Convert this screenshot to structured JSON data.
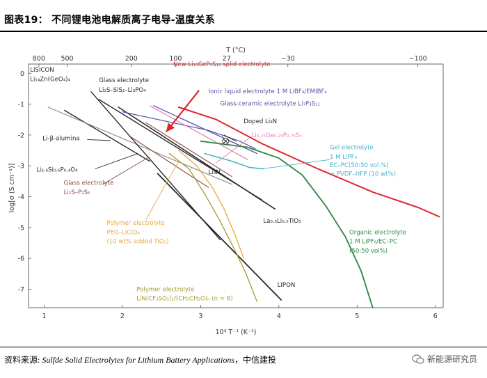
{
  "header": {
    "title": "图表19：  不同锂电池电解质离子电导-温度关系"
  },
  "footer": {
    "source_prefix": "资料来源: ",
    "source_italic": "Sulfde Solid Electrolytes for Lithium Battery Applications",
    "source_suffix": "，中信建投",
    "brand": "新能源研究员"
  },
  "colors": {
    "red": "#e0262b",
    "green": "#2e8a48",
    "teal": "#44b3c8",
    "purple": "#5a52a8",
    "pink": "#e87eb0",
    "orange": "#e6a93a",
    "olive": "#a79a2e",
    "brown": "#8a4a3a",
    "darkgray": "#2a2a2a",
    "gray": "#888888"
  },
  "chart_data": {
    "type": "line",
    "title": "",
    "xlabel": "10³ T⁻¹ (K⁻¹)",
    "ylabel": "log[σ (S cm⁻¹)]",
    "top_xlabel": "T (°C)",
    "xlim": [
      0.8,
      6.1
    ],
    "ylim": [
      -7.6,
      0.3
    ],
    "xticks": [
      1,
      2,
      3,
      4,
      5,
      6
    ],
    "yticks": [
      0,
      -1,
      -2,
      -3,
      -4,
      -5,
      -6,
      -7
    ],
    "top_ticks": [
      {
        "label": "800",
        "x": 0.932
      },
      {
        "label": "500",
        "x": 1.294
      },
      {
        "label": "200",
        "x": 2.114
      },
      {
        "label": "100",
        "x": 2.68
      },
      {
        "label": "27",
        "x": 3.333
      },
      {
        "label": "−30",
        "x": 4.115
      },
      {
        "label": "−100",
        "x": 5.777
      }
    ],
    "series": [
      {
        "id": "s1",
        "name": "LISICON Li14Zn(GeO4)4",
        "color": "darkgray",
        "width": 1.4,
        "points": [
          [
            1.26,
            -1.2
          ],
          [
            2.35,
            -2.85
          ]
        ]
      },
      {
        "id": "s2",
        "name": "Li3.6Si0.6P0.4O4",
        "color": "gray",
        "width": 1.1,
        "points": [
          [
            1.05,
            -1.1
          ],
          [
            3.4,
            -3.6
          ]
        ]
      },
      {
        "id": "s3",
        "name": "Li-β-alumina",
        "color": "darkgray",
        "width": 1.4,
        "points": [
          [
            1.6,
            -0.6
          ],
          [
            3.25,
            -5.4
          ]
        ]
      },
      {
        "id": "s4",
        "name": "Glass electrolyte Li2S-SiS2-Li3PO4",
        "color": "darkgray",
        "width": 1.4,
        "points": [
          [
            1.7,
            -0.85
          ],
          [
            3.78,
            -4.1
          ]
        ]
      },
      {
        "id": "s5",
        "name": "La0.5Li0.5TiO3",
        "color": "darkgray",
        "width": 1.6,
        "points": [
          [
            1.95,
            -1.1
          ],
          [
            3.95,
            -4.4
          ]
        ]
      },
      {
        "id": "s6",
        "name": "Glass electrolyte Li2S-P2S5",
        "color": "brown",
        "width": 1.1,
        "points": [
          [
            2.1,
            -2.05
          ],
          [
            3.1,
            -3.7
          ]
        ]
      },
      {
        "id": "s7",
        "name": "Li3N",
        "color": "brown",
        "width": 1.1,
        "points": [
          [
            2.3,
            -1.6
          ],
          [
            3.4,
            -3.35
          ]
        ]
      },
      {
        "id": "s8",
        "name": "LIPON",
        "color": "darkgray",
        "width": 1.8,
        "points": [
          [
            2.45,
            -3.25
          ],
          [
            4.03,
            -7.35
          ]
        ]
      },
      {
        "id": "s9",
        "name": "Polymer electrolyte PEO-LiClO4 (10 wt% added TiO2)",
        "color": "orange",
        "width": 1.3,
        "points": [
          [
            2.72,
            -2.5
          ],
          [
            2.95,
            -3.0
          ],
          [
            3.15,
            -3.7
          ],
          [
            3.3,
            -4.4
          ],
          [
            3.45,
            -5.3
          ],
          [
            3.55,
            -6.0
          ]
        ]
      },
      {
        "id": "s10",
        "name": "Polymer electrolyte LiN(CF3SO2)2/(CH2CH2O)n (n=8)",
        "color": "olive",
        "width": 1.3,
        "points": [
          [
            2.6,
            -2.6
          ],
          [
            2.85,
            -3.1
          ],
          [
            3.05,
            -3.9
          ],
          [
            3.25,
            -4.8
          ],
          [
            3.45,
            -5.8
          ],
          [
            3.58,
            -6.5
          ],
          [
            3.72,
            -7.4
          ]
        ]
      },
      {
        "id": "s11",
        "name": "Glass-ceramic electrolyte Li7P3S11",
        "color": "purple",
        "width": 1.3,
        "points": [
          [
            2.4,
            -1.05
          ],
          [
            3.72,
            -2.6
          ]
        ]
      },
      {
        "id": "s12",
        "name": "Ionic liquid electrolyte 1 M LiBF4/EMIBF4",
        "color": "purple",
        "width": 1.2,
        "points": [
          [
            2.0,
            -1.25
          ],
          [
            3.1,
            -1.85
          ],
          [
            3.5,
            -2.2
          ],
          [
            3.7,
            -2.45
          ]
        ]
      },
      {
        "id": "s13",
        "name": "Li3.25Ge0.25P0.75S4",
        "color": "pink",
        "width": 1.2,
        "points": [
          [
            2.35,
            -1.05
          ],
          [
            3.6,
            -2.8
          ]
        ]
      },
      {
        "id": "s14",
        "name": "Doped Li3N",
        "color": "darkgray",
        "width": 1.0,
        "points": [
          [
            3.3,
            -2.0
          ],
          [
            3.45,
            -2.2
          ]
        ]
      },
      {
        "id": "s15",
        "name": "Gel electrolyte 1 M LiPF6 EC-PC(50:50 vol.%) + PVDF-HFP (10 wt%)",
        "color": "teal",
        "width": 1.6,
        "points": [
          [
            3.05,
            -2.6
          ],
          [
            3.4,
            -2.85
          ],
          [
            3.62,
            -3.05
          ],
          [
            3.8,
            -3.1
          ]
        ]
      },
      {
        "id": "s16",
        "name": "New Li10GeP2S12 solid electrolyte",
        "color": "red",
        "width": 2.0,
        "points": [
          [
            2.72,
            -1.1
          ],
          [
            3.2,
            -1.5
          ],
          [
            3.8,
            -2.3
          ],
          [
            4.5,
            -3.1
          ],
          [
            5.2,
            -3.85
          ],
          [
            5.78,
            -4.35
          ],
          [
            6.05,
            -4.65
          ]
        ]
      },
      {
        "id": "s17",
        "name": "Organic electrolyte 1 M LiPF6/EC-PC (50:50 vol%)",
        "color": "green",
        "width": 1.9,
        "points": [
          [
            3.0,
            -2.2
          ],
          [
            3.6,
            -2.4
          ],
          [
            4.0,
            -2.75
          ],
          [
            4.3,
            -3.3
          ],
          [
            4.6,
            -4.3
          ],
          [
            4.85,
            -5.3
          ],
          [
            5.05,
            -6.4
          ],
          [
            5.2,
            -7.6
          ]
        ]
      }
    ],
    "arrow": {
      "color": "red",
      "from": [
        2.98,
        -0.55
      ],
      "to": [
        2.56,
        -1.9
      ]
    },
    "marker": {
      "x": 3.32,
      "y": -2.2,
      "label": "Doped Li3N"
    },
    "labels": [
      {
        "id": "L1a",
        "text": "LISICON",
        "color": "darkgray",
        "x": 0.82,
        "y": 0.12
      },
      {
        "id": "L1b",
        "text": "Li₁₄Zn(GeO₄)₄",
        "color": "darkgray",
        "x": 0.82,
        "y": -0.18
      },
      {
        "id": "L2",
        "text": "Li-β-alumina",
        "color": "darkgray",
        "x": 0.98,
        "y": -2.1
      },
      {
        "id": "L3",
        "text": "Li₃.₆Si₀.₆P₀.₄O₄",
        "color": "darkgray",
        "x": 0.9,
        "y": -3.12
      },
      {
        "id": "L4a",
        "text": "Glass electrolyte",
        "color": "darkgray",
        "x": 1.7,
        "y": -0.22
      },
      {
        "id": "L4b",
        "text": "Li₂S–SiS₂–Li₃PO₄",
        "color": "darkgray",
        "x": 1.7,
        "y": -0.53
      },
      {
        "id": "L5",
        "text": "New Li₁₀GeP₂S₁₂ solid electrolyte",
        "color": "red",
        "x": 2.65,
        "y": 0.3
      },
      {
        "id": "L6",
        "text": "Ionic liquid electrolyte 1 M LiBF₄/EMIBF₄",
        "color": "purple",
        "x": 3.1,
        "y": -0.58
      },
      {
        "id": "L7",
        "text": "Glass-ceramic electrolyte Li₇P₃S₁₁",
        "color": "purple",
        "x": 3.25,
        "y": -0.97
      },
      {
        "id": "L8",
        "text": "Doped Li₃N",
        "color": "darkgray",
        "x": 3.55,
        "y": -1.55
      },
      {
        "id": "L9",
        "text": "Li₃.₂₅Ge₀.₂₅P₀.₇₅S₄",
        "color": "pink",
        "x": 3.65,
        "y": -2.0
      },
      {
        "id": "L10a",
        "text": "Gel electrolyte",
        "color": "teal",
        "x": 4.65,
        "y": -2.4
      },
      {
        "id": "L10b",
        "text": "1 M LiPF₆",
        "color": "teal",
        "x": 4.65,
        "y": -2.7
      },
      {
        "id": "L10c",
        "text": "EC–PC(50:50 vol.%)",
        "color": "teal",
        "x": 4.65,
        "y": -2.97
      },
      {
        "id": "L10d",
        "text": "+ PVDF–HFP (10 wt%)",
        "color": "teal",
        "x": 4.65,
        "y": -3.25
      },
      {
        "id": "L11a",
        "text": "Glass electrolyte",
        "color": "brown",
        "x": 1.25,
        "y": -3.55
      },
      {
        "id": "L11b",
        "text": "Li₂S–P₂S₅",
        "color": "brown",
        "x": 1.25,
        "y": -3.85
      },
      {
        "id": "L12",
        "text": "Li₃N",
        "color": "darkgray",
        "x": 3.1,
        "y": -3.2
      },
      {
        "id": "L13",
        "text": "La₀.₅Li₀.₅TiO₃",
        "color": "darkgray",
        "x": 3.8,
        "y": -4.78
      },
      {
        "id": "L14a",
        "text": "Polymer electrolyte",
        "color": "orange",
        "x": 1.8,
        "y": -4.85
      },
      {
        "id": "L14b",
        "text": "PEO–LiClO₄",
        "color": "orange",
        "x": 1.8,
        "y": -5.15
      },
      {
        "id": "L14c",
        "text": "(10 wt% added TiO₂)",
        "color": "orange",
        "x": 1.8,
        "y": -5.45
      },
      {
        "id": "L15a",
        "text": "Organic electrolyte",
        "color": "green",
        "x": 4.9,
        "y": -5.15
      },
      {
        "id": "L15b",
        "text": "1 M LiPF₆/EC–PC",
        "color": "green",
        "x": 4.9,
        "y": -5.45
      },
      {
        "id": "L15c",
        "text": "(50:50 vol%)",
        "color": "green",
        "x": 4.9,
        "y": -5.75
      },
      {
        "id": "L16",
        "text": "LIPON",
        "color": "darkgray",
        "x": 3.98,
        "y": -6.85
      },
      {
        "id": "L17a",
        "text": "Polymer electrolyte",
        "color": "olive",
        "x": 2.18,
        "y": -7.0
      },
      {
        "id": "L17b",
        "text": "LiN(CF₃SO₂)₂/(CH₂CH₂O)ₙ (n = 8)",
        "color": "olive",
        "x": 2.18,
        "y": -7.3
      }
    ],
    "leaders": [
      {
        "color": "darkgray",
        "from": [
          1.55,
          -2.15
        ],
        "to": [
          1.85,
          -2.18
        ]
      },
      {
        "color": "darkgray",
        "from": [
          1.65,
          -3.1
        ],
        "to": [
          2.2,
          -2.6
        ]
      },
      {
        "color": "brown",
        "from": [
          1.75,
          -3.6
        ],
        "to": [
          2.35,
          -2.7
        ]
      },
      {
        "color": "orange",
        "from": [
          2.3,
          -4.75
        ],
        "to": [
          2.72,
          -2.85
        ]
      },
      {
        "color": "teal",
        "from": [
          3.78,
          -3.1
        ],
        "to": [
          4.65,
          -2.8
        ]
      },
      {
        "color": "pink",
        "from": [
          3.2,
          -2.9
        ],
        "to": [
          3.62,
          -2.1
        ]
      }
    ]
  }
}
